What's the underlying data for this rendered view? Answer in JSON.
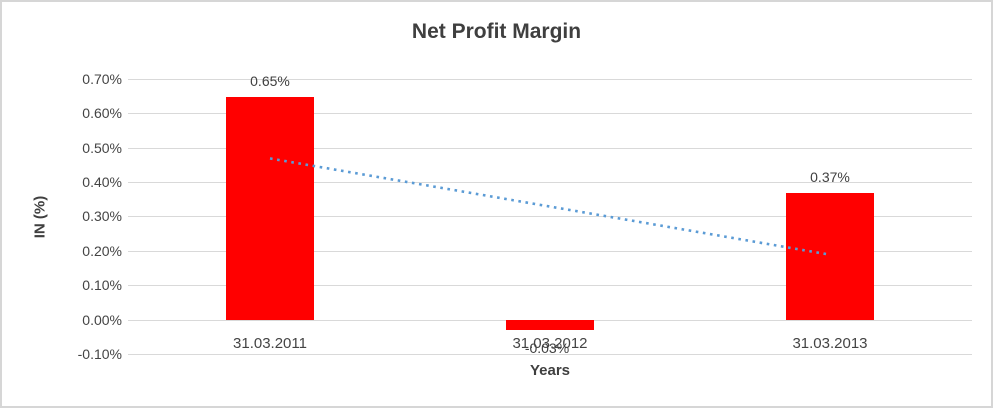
{
  "window": {
    "background": "#ffffff",
    "border_color": "#d6d6d6"
  },
  "chart_data": {
    "type": "bar",
    "title": "Net Profit Margin",
    "xlabel": "Years",
    "ylabel": "IN (%)",
    "categories": [
      "31.03.2011",
      "31.03.2012",
      "31.03.2013"
    ],
    "values": [
      0.65,
      -0.03,
      0.37
    ],
    "data_labels": [
      "0.65%",
      "-0.03%",
      "0.37%"
    ],
    "unit": "percent",
    "ylim": [
      -0.1,
      0.7
    ],
    "yticks": [
      {
        "value": 0.7,
        "label": "0.70%"
      },
      {
        "value": 0.6,
        "label": "0.60%"
      },
      {
        "value": 0.5,
        "label": "0.50%"
      },
      {
        "value": 0.4,
        "label": "0.40%"
      },
      {
        "value": 0.3,
        "label": "0.30%"
      },
      {
        "value": 0.2,
        "label": "0.20%"
      },
      {
        "value": 0.1,
        "label": "0.10%"
      },
      {
        "value": 0.0,
        "label": "0.00%"
      },
      {
        "value": -0.1,
        "label": "-0.10%"
      }
    ],
    "grid": true,
    "legend": "none",
    "colors": {
      "bar": "#ff0000",
      "trendline": "#5b9bd5",
      "gridline": "#d9d9d9",
      "text": "#404040"
    },
    "trendline": {
      "type": "linear",
      "style": "dotted",
      "start": 0.47,
      "end": 0.19
    }
  }
}
